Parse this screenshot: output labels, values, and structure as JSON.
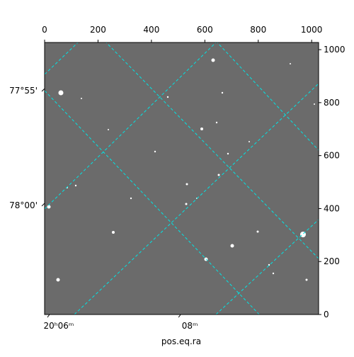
{
  "chart_data": {
    "type": "image",
    "xlabel": "pos.eq.ra",
    "xlim": [
      0,
      1026
    ],
    "xticks": [
      0,
      200,
      400,
      600,
      800,
      1000
    ],
    "ylim": [
      0,
      1027
    ],
    "yticks": [
      0,
      200,
      400,
      600,
      800,
      1000
    ],
    "ra_ticks": [
      {
        "value": 151,
        "label": "20ʰ06ᵐ"
      },
      {
        "value": 642,
        "label": "08ᵐ"
      }
    ],
    "dec_ticks": [
      {
        "value": 845,
        "label": "77°55'"
      },
      {
        "value": 412,
        "label": "78°00'"
      }
    ]
  }
}
